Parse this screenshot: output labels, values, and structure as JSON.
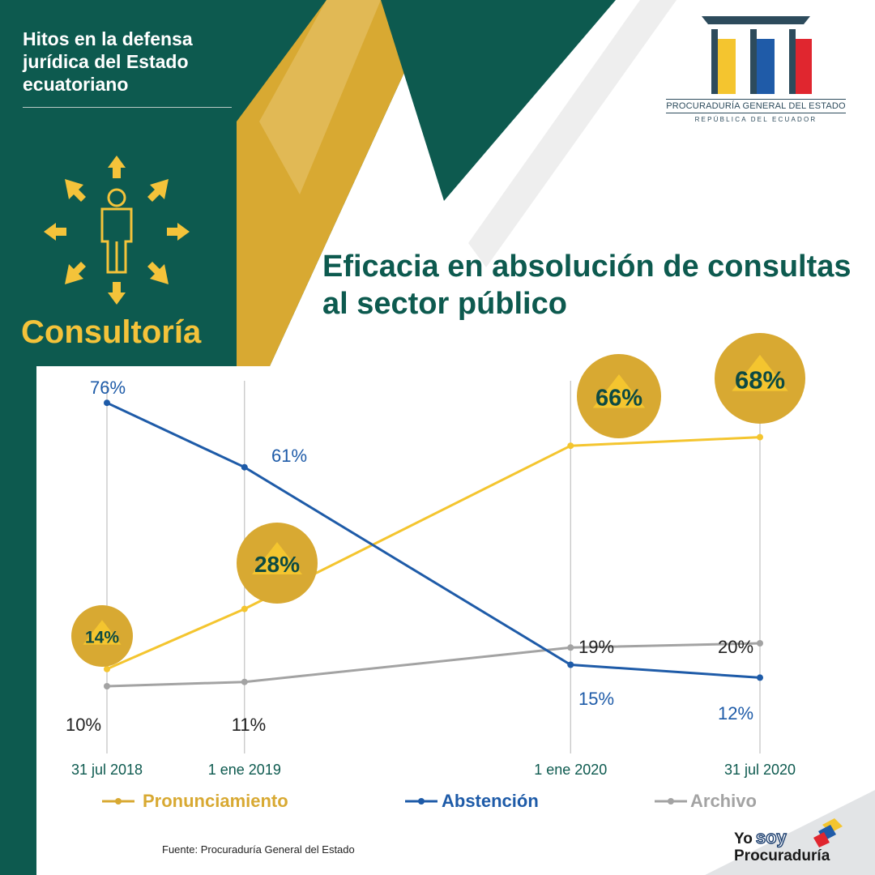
{
  "header": {
    "title": "Hitos en la defensa jurídica del Estado ecuatoriano",
    "section": "Consultoría",
    "section_icon": "person-arrows-icon"
  },
  "logo": {
    "name": "PROCURADURÍA GENERAL DEL ESTADO",
    "subtitle": "REPÚBLICA DEL ECUADOR",
    "icon": "columns-icon",
    "colors": [
      "#f4c52f",
      "#1f5ba8",
      "#e0262f"
    ]
  },
  "colors": {
    "teal": "#0d5a4f",
    "gold": "#d8a932",
    "yellow": "#f4c52f",
    "blue": "#1e5ba8",
    "gray": "#a3a3a3"
  },
  "chart_data": {
    "type": "line",
    "title": "Eficacia en absolución de consultas al sector público",
    "x": [
      "2018-07-31",
      "2019-01-01",
      "2020-01-01",
      "2020-07-31"
    ],
    "categories": [
      "31 jul 2018",
      "1 ene 2019",
      "1 ene  2020",
      "31 jul 2020"
    ],
    "ylim": [
      0,
      100
    ],
    "grid": "vertical",
    "legend": "bottom",
    "series": [
      {
        "name": "Pronunciamiento",
        "values": [
          14,
          28,
          66,
          68
        ],
        "labels": [
          "14%",
          "28%",
          "66%",
          "68%"
        ],
        "color": "#f4c52f",
        "legend_color": "#d8a932"
      },
      {
        "name": "Abstención",
        "values": [
          76,
          61,
          15,
          12
        ],
        "labels": [
          "76%",
          "61%",
          "15%",
          "12%"
        ],
        "color": "#1e5ba8",
        "legend_color": "#1e5ba8"
      },
      {
        "name": "Archivo",
        "values": [
          10,
          11,
          19,
          20
        ],
        "labels": [
          "10%",
          "11%",
          "19%",
          "20%"
        ],
        "color": "#a3a3a3",
        "legend_color": "#a3a3a3"
      }
    ]
  },
  "source": "Fuente: Procuraduría General del Estado",
  "brand": {
    "yo": "Yo",
    "soy": "soy",
    "proc": "Procuraduría"
  }
}
